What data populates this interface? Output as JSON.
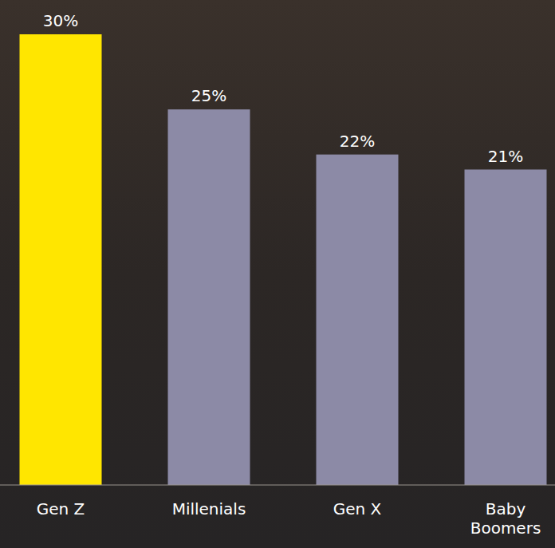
{
  "chart_data": {
    "type": "bar",
    "categories": [
      "Gen Z",
      "Millenials",
      "Gen X",
      "Baby Boomers"
    ],
    "values": [
      30,
      25,
      22,
      21
    ],
    "value_labels": [
      "30%",
      "25%",
      "22%",
      "21%"
    ],
    "colors": [
      "#ffe600",
      "#8c8aa6",
      "#8c8aa6",
      "#8c8aa6"
    ],
    "ylim": [
      0,
      30
    ],
    "data_labels": true,
    "tick_labels": "x",
    "grid": false
  }
}
